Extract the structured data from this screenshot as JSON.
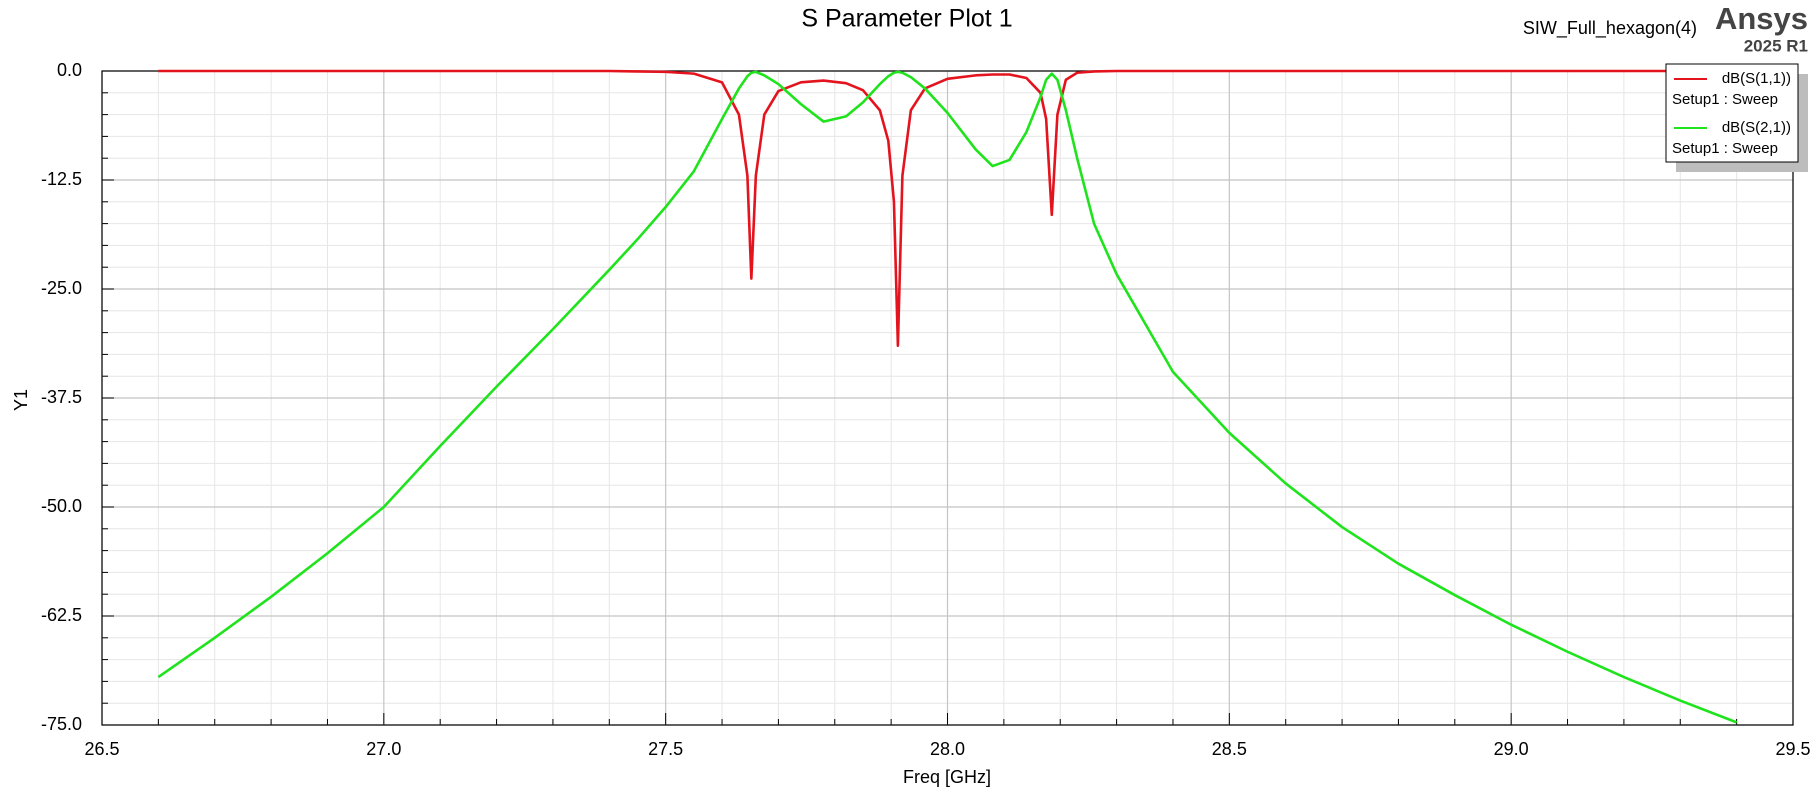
{
  "chart_data": {
    "type": "line",
    "title": "S Parameter Plot 1",
    "design": "SIW_Full_hexagon(4)",
    "brand": "Ansys",
    "version": "2025 R1",
    "x_label": "Freq [GHz]",
    "y_label": "Y1",
    "xlim": [
      26.5,
      29.5
    ],
    "xticks": [
      26.5,
      {
        "value": 27,
        "label": "27.0"
      },
      27.5,
      {
        "value": 28,
        "label": "28.0"
      },
      28.5,
      {
        "value": 29,
        "label": "29.0"
      },
      29.5
    ],
    "ylim": [
      -75,
      0
    ],
    "yticks": [
      {
        "value": 0,
        "label": "0.0"
      },
      -12.5,
      {
        "value": -25,
        "label": "-25.0"
      },
      -37.5,
      {
        "value": -50,
        "label": "-50.0"
      },
      -62.5,
      {
        "value": -75,
        "label": "-75.0"
      }
    ],
    "grid": true,
    "minor_grid": true,
    "legend": "upper right",
    "x": [
      26.6,
      26.7,
      26.8,
      26.9,
      27.0,
      27.1,
      27.2,
      27.3,
      27.4,
      27.45,
      27.5,
      27.55,
      27.6,
      27.63,
      27.645,
      27.652,
      27.66,
      27.675,
      27.7,
      27.74,
      27.78,
      27.82,
      27.85,
      27.88,
      27.895,
      27.905,
      27.912,
      27.92,
      27.935,
      27.96,
      28.0,
      28.05,
      28.08,
      28.11,
      28.14,
      28.165,
      28.175,
      28.185,
      28.195,
      28.21,
      28.23,
      28.26,
      28.3,
      28.4,
      28.5,
      28.6,
      28.7,
      28.8,
      28.9,
      29.0,
      29.1,
      29.2,
      29.3,
      29.4
    ],
    "series": [
      {
        "name": "dB(S(1,1))",
        "setup": "Setup1 : Sweep",
        "color": "#e3141e",
        "values": [
          0,
          0,
          0,
          0,
          0,
          0,
          0,
          0,
          0,
          -0.05,
          -0.1,
          -0.3,
          -1.3,
          -5,
          -12,
          -23.8,
          -12,
          -5,
          -2.3,
          -1.3,
          -1.1,
          -1.4,
          -2.2,
          -4.5,
          -8,
          -15,
          -31.5,
          -12,
          -4.5,
          -2,
          -0.9,
          -0.5,
          -0.4,
          -0.4,
          -0.8,
          -2.5,
          -5.5,
          -16.5,
          -5,
          -1,
          -0.2,
          -0.05,
          0,
          0,
          0,
          0,
          0,
          0,
          0,
          0,
          0,
          0,
          0,
          0
        ]
      },
      {
        "name": "dB(S(2,1))",
        "setup": "Setup1 : Sweep",
        "color": "#1fe31c",
        "values": [
          -69.5,
          -65,
          -60.3,
          -55.3,
          -50,
          -43,
          -36.2,
          -29.6,
          -22.8,
          -19.3,
          -15.6,
          -11.5,
          -5.5,
          -2,
          -0.6,
          -0.2,
          -0.1,
          -0.5,
          -1.5,
          -3.8,
          -5.8,
          -5.2,
          -3.6,
          -1.5,
          -0.6,
          -0.2,
          -0.1,
          -0.2,
          -0.7,
          -2,
          -4.8,
          -9,
          -10.9,
          -10.2,
          -7,
          -3,
          -1,
          -0.3,
          -1,
          -4.5,
          -10,
          -17.5,
          -23.3,
          -34.5,
          -41.5,
          -47.3,
          -52.3,
          -56.5,
          -60.1,
          -63.5,
          -66.6,
          -69.5,
          -72.2,
          -74.7
        ]
      }
    ]
  }
}
